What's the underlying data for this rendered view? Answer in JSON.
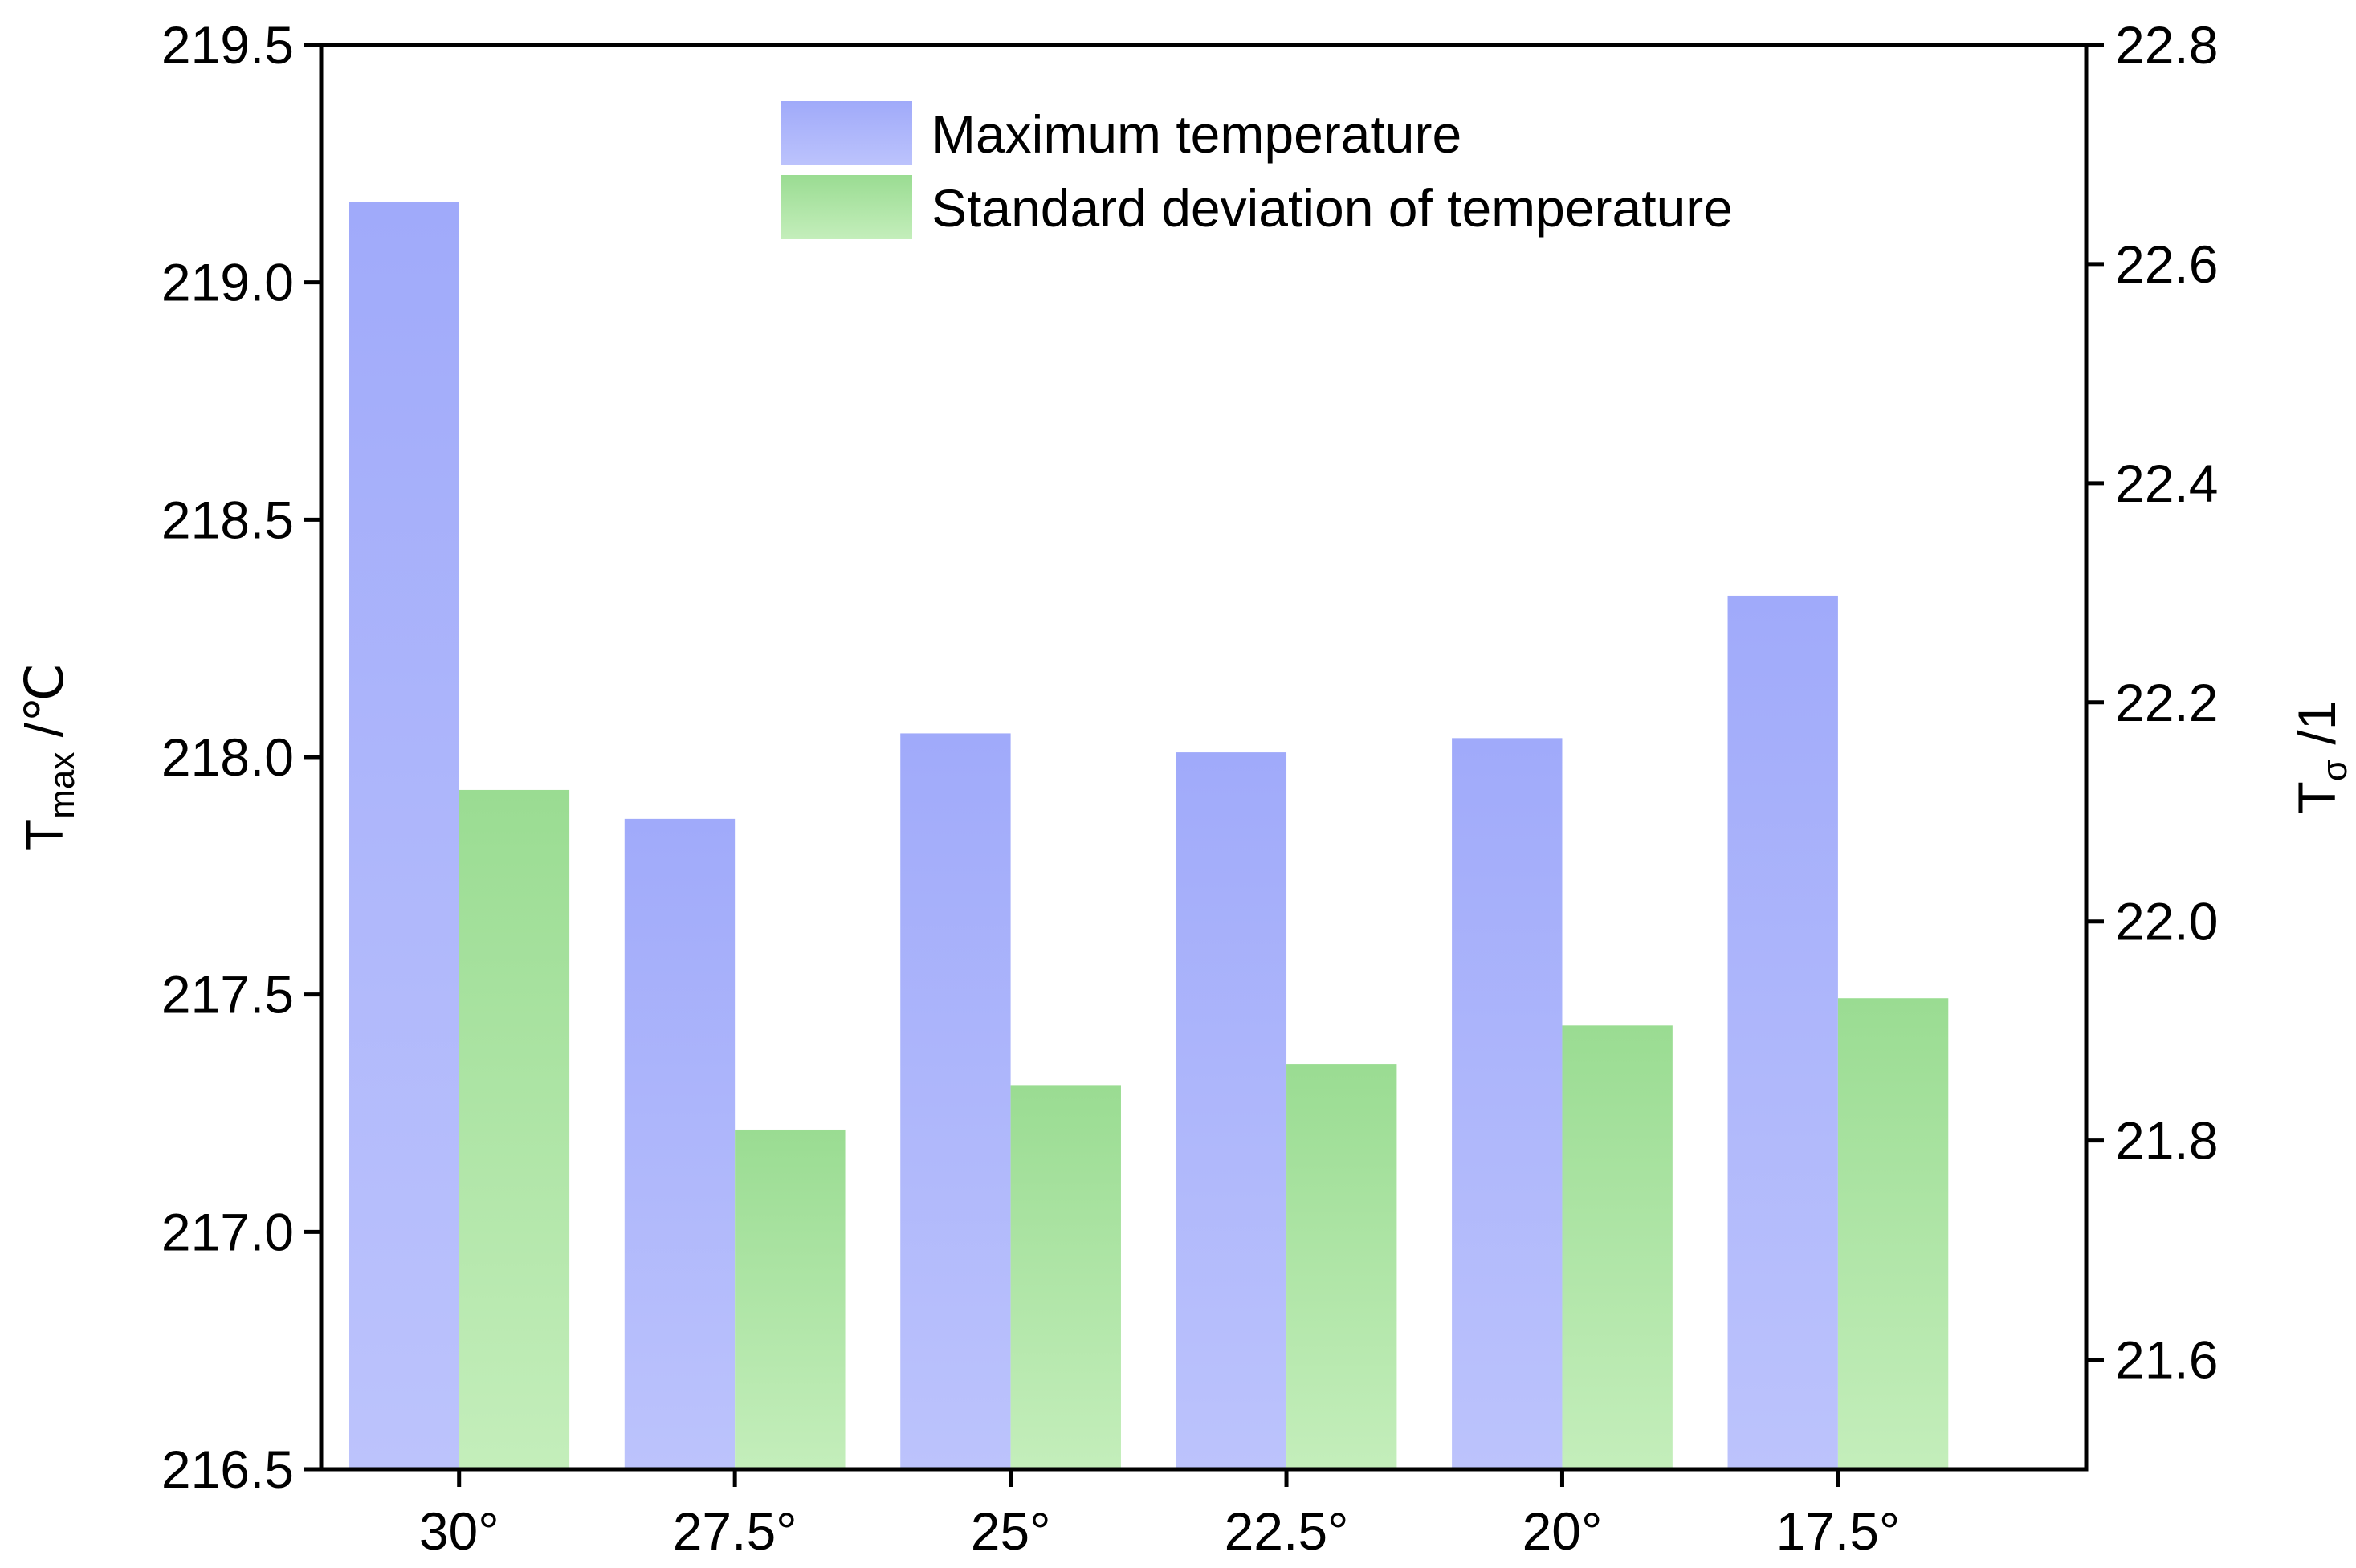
{
  "chart_data": {
    "type": "bar",
    "categories": [
      "30°",
      "27.5°",
      "25°",
      "22.5°",
      "20°",
      "17.5°"
    ],
    "series": [
      {
        "name": "Maximum temperature",
        "axis": "left",
        "values": [
          219.17,
          217.87,
          218.05,
          218.01,
          218.04,
          218.34
        ]
      },
      {
        "name": "Standard deviation of temperature",
        "axis": "right",
        "values": [
          22.12,
          21.81,
          21.85,
          21.87,
          21.905,
          21.93
        ]
      }
    ],
    "left_axis": {
      "label_main": "T",
      "label_sub": "max",
      "label_unit": " /℃",
      "ylim": [
        216.5,
        219.5
      ],
      "ticks": [
        "216.5",
        "217.0",
        "217.5",
        "218.0",
        "218.5",
        "219.0",
        "219.5"
      ]
    },
    "right_axis": {
      "label_main": "T",
      "label_sub": "σ",
      "label_unit": " /1",
      "ylim": [
        21.5,
        22.8
      ],
      "ticks": [
        "21.6",
        "21.8",
        "22.0",
        "22.2",
        "22.4",
        "22.6",
        "22.8"
      ]
    },
    "legend_position": "top-center",
    "grid": false,
    "colors": {
      "max_top": "#a0aafa",
      "max_bottom": "#bcc3fc",
      "std_top": "#9adc92",
      "std_bottom": "#c4eebb"
    }
  }
}
